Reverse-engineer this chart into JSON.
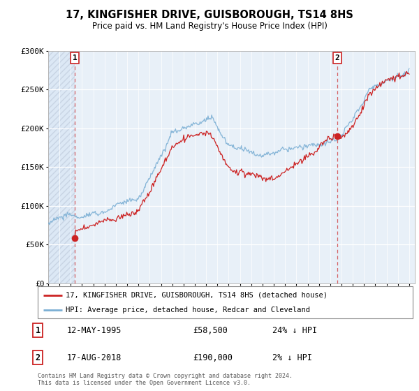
{
  "title": "17, KINGFISHER DRIVE, GUISBOROUGH, TS14 8HS",
  "subtitle": "Price paid vs. HM Land Registry's House Price Index (HPI)",
  "legend_line1": "17, KINGFISHER DRIVE, GUISBOROUGH, TS14 8HS (detached house)",
  "legend_line2": "HPI: Average price, detached house, Redcar and Cleveland",
  "annotation1_date": "12-MAY-1995",
  "annotation1_price": "£58,500",
  "annotation1_hpi": "24% ↓ HPI",
  "annotation2_date": "17-AUG-2018",
  "annotation2_price": "£190,000",
  "annotation2_hpi": "2% ↓ HPI",
  "footer": "Contains HM Land Registry data © Crown copyright and database right 2024.\nThis data is licensed under the Open Government Licence v3.0.",
  "ylim": [
    0,
    300000
  ],
  "yticks": [
    0,
    50000,
    100000,
    150000,
    200000,
    250000,
    300000
  ],
  "ylabels": [
    "£0",
    "£50K",
    "£100K",
    "£150K",
    "£200K",
    "£250K",
    "£300K"
  ],
  "xstart": 1993,
  "xend": 2025,
  "sale1_year": 1995.36,
  "sale1_price": 58500,
  "sale2_year": 2018.62,
  "sale2_price": 190000,
  "hpi_color": "#7bafd4",
  "price_color": "#cc2222",
  "hatch_color": "#c8d4e4",
  "bg_color": "#dce8f5",
  "plain_bg_color": "#e8f0f8"
}
